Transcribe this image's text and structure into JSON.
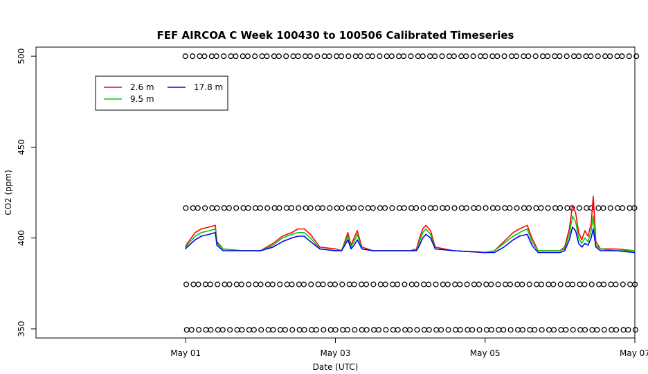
{
  "chart_data": {
    "type": "line",
    "title": "FEF AIRCOA C  Week 100430 to 100506  Calibrated Timeseries",
    "xlabel": "Date (UTC)",
    "ylabel": "CO2 (ppm)",
    "x_range": [
      "2010-04-29T00:00",
      "2010-05-07T00:00"
    ],
    "ylim": [
      345,
      505
    ],
    "x_ticks": [
      {
        "date": "2010-05-01",
        "label": "May 01"
      },
      {
        "date": "2010-05-03",
        "label": "May 03"
      },
      {
        "date": "2010-05-05",
        "label": "May 05"
      },
      {
        "date": "2010-05-07",
        "label": "May 07"
      }
    ],
    "y_ticks": [
      350,
      400,
      450,
      500
    ],
    "legend": {
      "position": "top-left",
      "entries": [
        {
          "label": "2.6 m",
          "color": "#ff0000"
        },
        {
          "label": "9.5 m",
          "color": "#00cd00"
        },
        {
          "label": "17.8 m",
          "color": "#0000ff"
        }
      ]
    },
    "series": [
      {
        "name": "2.6 m",
        "color": "#ff0000",
        "points": [
          [
            "2010-04-30T23:53",
            395
          ],
          [
            "2010-05-01T00:30",
            397
          ],
          [
            "2010-05-01T03:00",
            403
          ],
          [
            "2010-05-01T05:00",
            405
          ],
          [
            "2010-05-01T07:30",
            406
          ],
          [
            "2010-05-01T09:30",
            407
          ],
          [
            "2010-05-01T10:00",
            398
          ],
          [
            "2010-05-01T12:00",
            394
          ],
          [
            "2010-05-01T18:00",
            393
          ],
          [
            "2010-05-02T00:00",
            393
          ],
          [
            "2010-05-02T04:00",
            397
          ],
          [
            "2010-05-02T07:00",
            401
          ],
          [
            "2010-05-02T10:00",
            403
          ],
          [
            "2010-05-02T12:00",
            405
          ],
          [
            "2010-05-02T14:00",
            405
          ],
          [
            "2010-05-02T16:00",
            402
          ],
          [
            "2010-05-02T19:00",
            395
          ],
          [
            "2010-05-03T00:00",
            394
          ],
          [
            "2010-05-03T02:00",
            393
          ],
          [
            "2010-05-03T03:00",
            398
          ],
          [
            "2010-05-03T04:00",
            403
          ],
          [
            "2010-05-03T05:00",
            396
          ],
          [
            "2010-05-03T06:00",
            400
          ],
          [
            "2010-05-03T07:00",
            404
          ],
          [
            "2010-05-03T08:30",
            395
          ],
          [
            "2010-05-03T12:00",
            393
          ],
          [
            "2010-05-04T00:00",
            393
          ],
          [
            "2010-05-04T02:00",
            394
          ],
          [
            "2010-05-04T03:00",
            400
          ],
          [
            "2010-05-04T04:00",
            405
          ],
          [
            "2010-05-04T05:00",
            407
          ],
          [
            "2010-05-04T06:30",
            404
          ],
          [
            "2010-05-04T08:00",
            395
          ],
          [
            "2010-05-04T14:00",
            393
          ],
          [
            "2010-05-05T00:00",
            392
          ],
          [
            "2010-05-05T03:00",
            393
          ],
          [
            "2010-05-05T06:00",
            398
          ],
          [
            "2010-05-05T09:00",
            403
          ],
          [
            "2010-05-05T11:00",
            405
          ],
          [
            "2010-05-05T13:30",
            407
          ],
          [
            "2010-05-05T15:00",
            400
          ],
          [
            "2010-05-05T17:00",
            393
          ],
          [
            "2010-05-06T00:00",
            393
          ],
          [
            "2010-05-06T01:30",
            395
          ],
          [
            "2010-05-06T03:00",
            405
          ],
          [
            "2010-05-06T04:00",
            418
          ],
          [
            "2010-05-06T05:00",
            414
          ],
          [
            "2010-05-06T06:00",
            403
          ],
          [
            "2010-05-06T07:00",
            399
          ],
          [
            "2010-05-06T08:00",
            404
          ],
          [
            "2010-05-06T09:00",
            401
          ],
          [
            "2010-05-06T10:00",
            408
          ],
          [
            "2010-05-06T10:40",
            423
          ],
          [
            "2010-05-06T11:30",
            398
          ],
          [
            "2010-05-06T13:00",
            394
          ],
          [
            "2010-05-06T18:00",
            394
          ],
          [
            "2010-05-06T23:59",
            393
          ]
        ]
      },
      {
        "name": "9.5 m",
        "color": "#00cd00",
        "points": [
          [
            "2010-04-30T23:53",
            394
          ],
          [
            "2010-05-01T00:30",
            396
          ],
          [
            "2010-05-01T03:00",
            401
          ],
          [
            "2010-05-01T05:00",
            403
          ],
          [
            "2010-05-01T07:30",
            404
          ],
          [
            "2010-05-01T09:30",
            405
          ],
          [
            "2010-05-01T10:00",
            397
          ],
          [
            "2010-05-01T12:00",
            394
          ],
          [
            "2010-05-01T18:00",
            393
          ],
          [
            "2010-05-02T00:00",
            393
          ],
          [
            "2010-05-02T04:00",
            396
          ],
          [
            "2010-05-02T07:00",
            400
          ],
          [
            "2010-05-02T10:00",
            402
          ],
          [
            "2010-05-02T12:00",
            403
          ],
          [
            "2010-05-02T14:00",
            403
          ],
          [
            "2010-05-02T16:00",
            400
          ],
          [
            "2010-05-02T19:00",
            394
          ],
          [
            "2010-05-03T00:00",
            393
          ],
          [
            "2010-05-03T02:00",
            393
          ],
          [
            "2010-05-03T03:00",
            397
          ],
          [
            "2010-05-03T04:00",
            401
          ],
          [
            "2010-05-03T05:00",
            395
          ],
          [
            "2010-05-03T06:00",
            398
          ],
          [
            "2010-05-03T07:00",
            402
          ],
          [
            "2010-05-03T08:30",
            394
          ],
          [
            "2010-05-03T12:00",
            393
          ],
          [
            "2010-05-04T00:00",
            393
          ],
          [
            "2010-05-04T02:00",
            393
          ],
          [
            "2010-05-04T03:00",
            398
          ],
          [
            "2010-05-04T04:00",
            403
          ],
          [
            "2010-05-04T05:00",
            405
          ],
          [
            "2010-05-04T06:30",
            402
          ],
          [
            "2010-05-04T08:00",
            394
          ],
          [
            "2010-05-04T14:00",
            393
          ],
          [
            "2010-05-05T00:00",
            392
          ],
          [
            "2010-05-05T03:00",
            393
          ],
          [
            "2010-05-05T06:00",
            397
          ],
          [
            "2010-05-05T09:00",
            401
          ],
          [
            "2010-05-05T11:00",
            403
          ],
          [
            "2010-05-05T13:30",
            405
          ],
          [
            "2010-05-05T15:00",
            398
          ],
          [
            "2010-05-05T17:00",
            393
          ],
          [
            "2010-05-06T00:00",
            393
          ],
          [
            "2010-05-06T01:30",
            394
          ],
          [
            "2010-05-06T03:00",
            402
          ],
          [
            "2010-05-06T04:00",
            412
          ],
          [
            "2010-05-06T05:00",
            409
          ],
          [
            "2010-05-06T06:00",
            400
          ],
          [
            "2010-05-06T07:00",
            397
          ],
          [
            "2010-05-06T08:00",
            400
          ],
          [
            "2010-05-06T09:00",
            398
          ],
          [
            "2010-05-06T10:00",
            404
          ],
          [
            "2010-05-06T10:40",
            412
          ],
          [
            "2010-05-06T11:30",
            396
          ],
          [
            "2010-05-06T13:00",
            394
          ],
          [
            "2010-05-06T18:00",
            393
          ],
          [
            "2010-05-06T23:59",
            393
          ]
        ]
      },
      {
        "name": "17.8 m",
        "color": "#0000ff",
        "points": [
          [
            "2010-04-30T23:53",
            394
          ],
          [
            "2010-05-01T00:30",
            395
          ],
          [
            "2010-05-01T03:00",
            399
          ],
          [
            "2010-05-01T05:00",
            401
          ],
          [
            "2010-05-01T07:30",
            402
          ],
          [
            "2010-05-01T09:30",
            403
          ],
          [
            "2010-05-01T10:00",
            396
          ],
          [
            "2010-05-01T12:00",
            393
          ],
          [
            "2010-05-01T18:00",
            393
          ],
          [
            "2010-05-02T00:00",
            393
          ],
          [
            "2010-05-02T04:00",
            395
          ],
          [
            "2010-05-02T07:00",
            398
          ],
          [
            "2010-05-02T10:00",
            400
          ],
          [
            "2010-05-02T12:00",
            401
          ],
          [
            "2010-05-02T14:00",
            401
          ],
          [
            "2010-05-02T16:00",
            398
          ],
          [
            "2010-05-02T19:00",
            394
          ],
          [
            "2010-05-03T00:00",
            393
          ],
          [
            "2010-05-03T02:00",
            393
          ],
          [
            "2010-05-03T03:00",
            396
          ],
          [
            "2010-05-03T04:00",
            399
          ],
          [
            "2010-05-03T05:00",
            394
          ],
          [
            "2010-05-03T06:00",
            396
          ],
          [
            "2010-05-03T07:00",
            399
          ],
          [
            "2010-05-03T08:30",
            394
          ],
          [
            "2010-05-03T12:00",
            393
          ],
          [
            "2010-05-04T00:00",
            393
          ],
          [
            "2010-05-04T02:00",
            393
          ],
          [
            "2010-05-04T03:00",
            396
          ],
          [
            "2010-05-04T04:00",
            400
          ],
          [
            "2010-05-04T05:00",
            402
          ],
          [
            "2010-05-04T06:30",
            400
          ],
          [
            "2010-05-04T08:00",
            394
          ],
          [
            "2010-05-04T14:00",
            393
          ],
          [
            "2010-05-05T00:00",
            392
          ],
          [
            "2010-05-05T03:00",
            392
          ],
          [
            "2010-05-05T06:00",
            395
          ],
          [
            "2010-05-05T09:00",
            399
          ],
          [
            "2010-05-05T11:00",
            401
          ],
          [
            "2010-05-05T13:30",
            402
          ],
          [
            "2010-05-05T15:00",
            396
          ],
          [
            "2010-05-05T17:00",
            392
          ],
          [
            "2010-05-06T00:00",
            392
          ],
          [
            "2010-05-06T01:30",
            393
          ],
          [
            "2010-05-06T03:00",
            399
          ],
          [
            "2010-05-06T04:00",
            406
          ],
          [
            "2010-05-06T05:00",
            404
          ],
          [
            "2010-05-06T06:00",
            397
          ],
          [
            "2010-05-06T07:00",
            395
          ],
          [
            "2010-05-06T08:00",
            397
          ],
          [
            "2010-05-06T09:00",
            396
          ],
          [
            "2010-05-06T10:00",
            400
          ],
          [
            "2010-05-06T10:40",
            405
          ],
          [
            "2010-05-06T11:30",
            395
          ],
          [
            "2010-05-06T13:00",
            393
          ],
          [
            "2010-05-06T18:00",
            393
          ],
          [
            "2010-05-06T23:59",
            392
          ]
        ]
      }
    ],
    "reference_points": {
      "marker": "open-circle",
      "color": "#000000",
      "interval_hours": 2,
      "levels": [
        500,
        416.5,
        374.5,
        349.5
      ]
    }
  }
}
